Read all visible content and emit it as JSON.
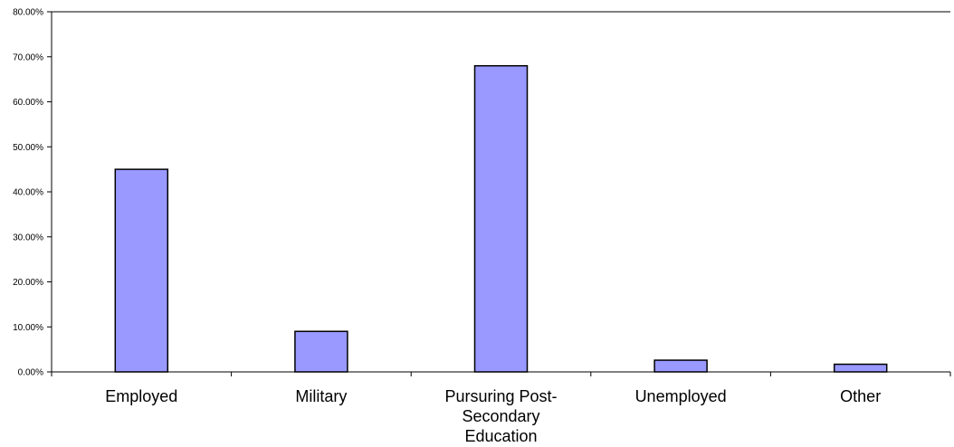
{
  "chart_data": {
    "type": "bar",
    "title": "",
    "xlabel": "",
    "ylabel": "",
    "categories": [
      [
        "Employed"
      ],
      [
        "Military"
      ],
      [
        "Pursuring Post-",
        "Secondary",
        "Education"
      ],
      [
        "Unemployed"
      ],
      [
        "Other"
      ]
    ],
    "values": [
      0.45,
      0.09,
      0.68,
      0.026,
      0.017
    ],
    "ylim": [
      0,
      0.8
    ],
    "yticks": [
      0,
      0.1,
      0.2,
      0.3,
      0.4,
      0.5,
      0.6,
      0.7,
      0.8
    ],
    "ytick_labels": [
      "0.00%",
      "10.00%",
      "20.00%",
      "30.00%",
      "40.00%",
      "50.00%",
      "60.00%",
      "70.00%",
      "80.00%"
    ],
    "grid": false,
    "legend": "none",
    "colors": {
      "bar_fill": "#9999ff",
      "bar_stroke": "#000000",
      "axis": "#000000"
    }
  }
}
